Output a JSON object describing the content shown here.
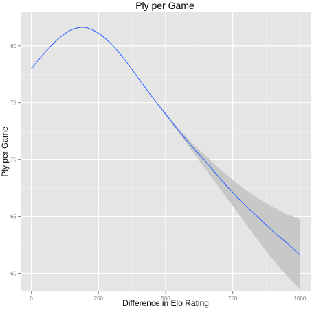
{
  "chart_data": {
    "type": "line",
    "title": "Ply per Game",
    "xlabel": "Difference in Elo Rating",
    "ylabel": "Ply per Game",
    "xlim": [
      -40,
      1040
    ],
    "ylim": [
      58.4,
      83.0
    ],
    "x_ticks": [
      0,
      250,
      500,
      750,
      1000
    ],
    "x_tick_labels": [
      "0",
      "250",
      "500",
      "750",
      "1000"
    ],
    "y_ticks": [
      60,
      65,
      70,
      75,
      80
    ],
    "y_tick_labels": [
      "60",
      "65",
      "70",
      "75",
      "80"
    ],
    "grid": true,
    "legend": "none",
    "series": [
      {
        "x": [
          0,
          50,
          100,
          150,
          200,
          250,
          300,
          350,
          400,
          450,
          500,
          550,
          600,
          650,
          700,
          750,
          800,
          850,
          900,
          950,
          1000
        ],
        "y": [
          78.0,
          79.4,
          80.6,
          81.4,
          81.6,
          81.1,
          80.1,
          78.7,
          77.1,
          75.5,
          74.0,
          72.5,
          71.1,
          69.8,
          68.4,
          67.1,
          65.9,
          64.8,
          63.7,
          62.7,
          61.6
        ],
        "lower": [
          78.0,
          79.4,
          80.6,
          81.4,
          81.6,
          81.1,
          80.1,
          78.7,
          77.1,
          75.5,
          73.9,
          72.3,
          70.7,
          69.1,
          67.5,
          65.9,
          64.3,
          62.7,
          61.2,
          59.8,
          58.6
        ],
        "upper": [
          78.0,
          79.4,
          80.6,
          81.4,
          81.6,
          81.1,
          80.1,
          78.7,
          77.1,
          75.5,
          74.1,
          72.7,
          71.4,
          70.3,
          69.2,
          68.2,
          67.3,
          66.5,
          65.8,
          65.2,
          64.8
        ]
      }
    ],
    "colors": {
      "panel_background": "#e5e5e5",
      "grid_major": "#ffffff",
      "grid_minor": "#f2f2f2",
      "line": "#3366ff",
      "ribbon": "#c8c8c8",
      "tick_text": "#7f7f7f"
    }
  }
}
